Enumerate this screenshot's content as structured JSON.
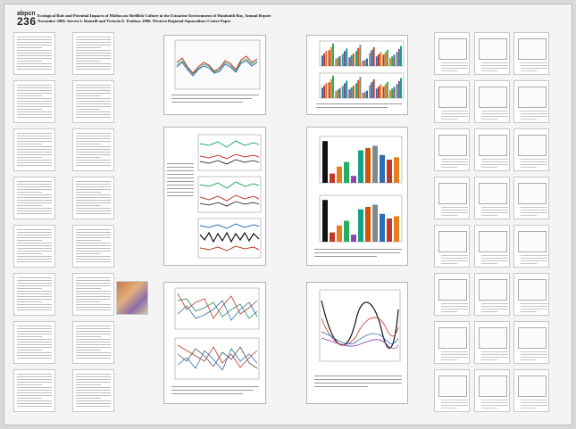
{
  "poster": {
    "code": "abpcn",
    "number": "236",
    "title": "Ecological Role and Potential Impacts of Molluscan Shellfish Culture in the Estuarine Environment of Humboldt Bay, Annual Report November 2006. Steven S. Rumrill and Victoria E. Poulton. 2006. Western Regional Aquaculture Center Paper"
  },
  "colors": {
    "background": "#d9d9d9",
    "sheet": "#f4f4f4",
    "page": "#ffffff"
  }
}
